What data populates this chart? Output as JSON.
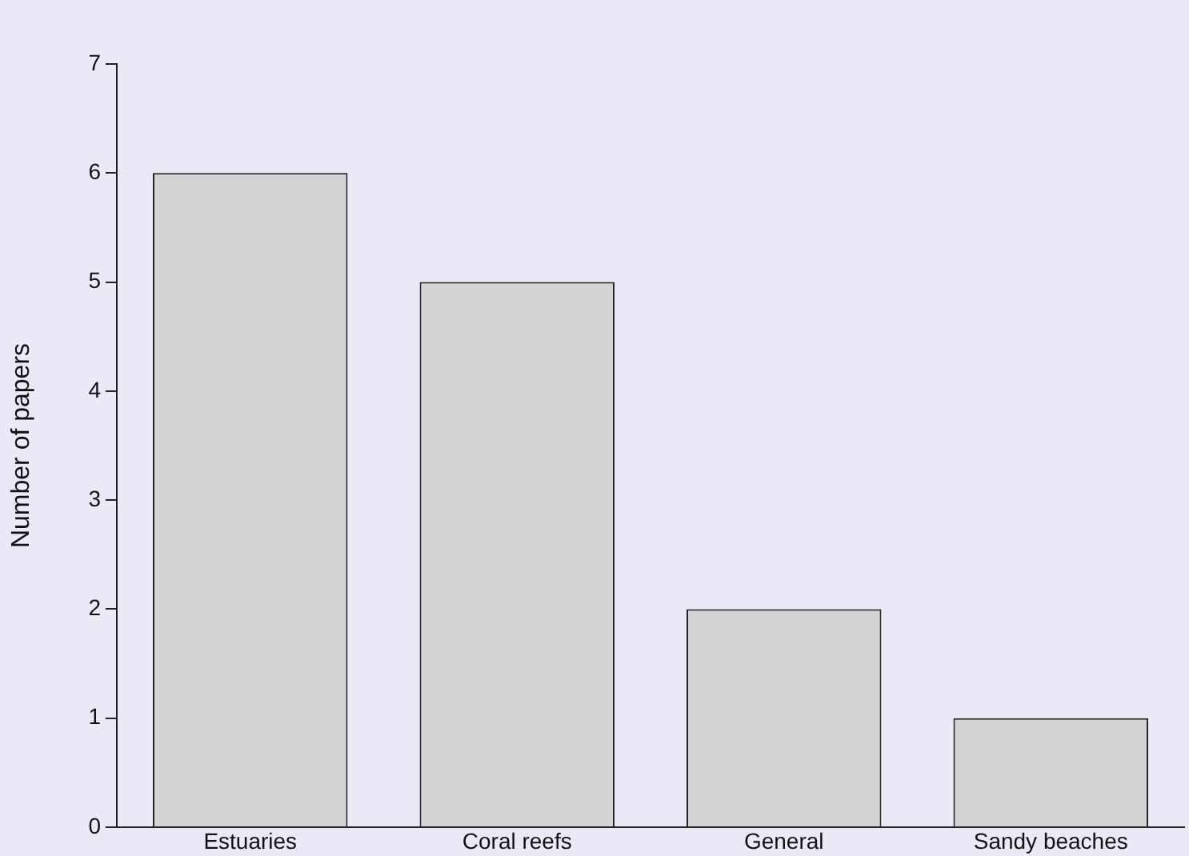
{
  "chart_data": {
    "type": "bar",
    "ylabel": "Number of papers",
    "categories": [
      "Estuaries",
      "Coral reefs",
      "General",
      "Sandy beaches"
    ],
    "values": [
      6,
      5,
      2,
      1
    ],
    "color": "#d3d3d3",
    "ylim": [
      0,
      7
    ],
    "yticks": [
      0,
      1,
      2,
      3,
      4,
      5,
      6,
      7
    ],
    "grid": false,
    "legend": false
  }
}
